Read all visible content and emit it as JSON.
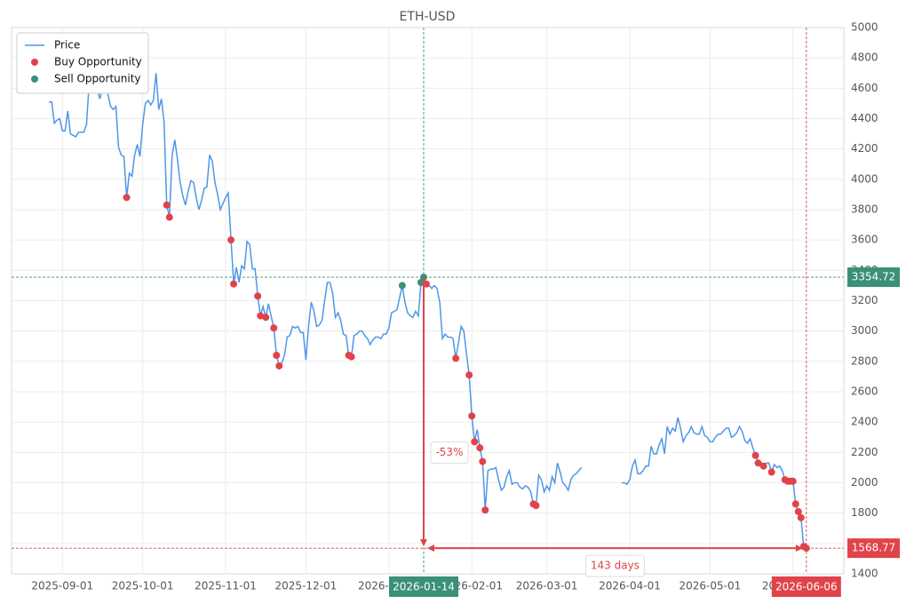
{
  "chart_data": {
    "type": "line",
    "title": "ETH-USD",
    "x": [
      "2025-08-27",
      "2025-08-28",
      "2025-08-29",
      "2025-08-30",
      "2025-08-31",
      "2025-09-01",
      "2025-09-02",
      "2025-09-03",
      "2025-09-04",
      "2025-09-05",
      "2025-09-06",
      "2025-09-07",
      "2025-09-08",
      "2025-09-09",
      "2025-09-10",
      "2025-09-11",
      "2025-09-12",
      "2025-09-13",
      "2025-09-14",
      "2025-09-15",
      "2025-09-16",
      "2025-09-17",
      "2025-09-18",
      "2025-09-19",
      "2025-09-20",
      "2025-09-21",
      "2025-09-22",
      "2025-09-23",
      "2025-09-24",
      "2025-09-25",
      "2025-09-26",
      "2025-09-27",
      "2025-09-28",
      "2025-09-29",
      "2025-09-30",
      "2025-10-01",
      "2025-10-02",
      "2025-10-03",
      "2025-10-04",
      "2025-10-05",
      "2025-10-06",
      "2025-10-07",
      "2025-10-08",
      "2025-10-09",
      "2025-10-10",
      "2025-10-11",
      "2025-10-12",
      "2025-10-13",
      "2025-10-14",
      "2025-10-15",
      "2025-10-16",
      "2025-10-17",
      "2025-10-18",
      "2025-10-19",
      "2025-10-20",
      "2025-10-21",
      "2025-10-22",
      "2025-10-23",
      "2025-10-24",
      "2025-10-25",
      "2025-10-26",
      "2025-10-27",
      "2025-10-28",
      "2025-10-29",
      "2025-10-30",
      "2025-10-31",
      "2025-11-01",
      "2025-11-02",
      "2025-11-03",
      "2025-11-04",
      "2025-11-05",
      "2025-11-06",
      "2025-11-07",
      "2025-11-08",
      "2025-11-09",
      "2025-11-10",
      "2025-11-11",
      "2025-11-12",
      "2025-11-13",
      "2025-11-14",
      "2025-11-15",
      "2025-11-16",
      "2025-11-17",
      "2025-11-18",
      "2025-11-19",
      "2025-11-20",
      "2025-11-21",
      "2025-11-22",
      "2025-11-23",
      "2025-11-24",
      "2025-11-25",
      "2025-11-26",
      "2025-11-27",
      "2025-11-28",
      "2025-11-29",
      "2025-11-30",
      "2025-12-01",
      "2025-12-02",
      "2025-12-03",
      "2025-12-04",
      "2025-12-05",
      "2025-12-06",
      "2025-12-07",
      "2025-12-08",
      "2025-12-09",
      "2025-12-10",
      "2025-12-11",
      "2025-12-12",
      "2025-12-13",
      "2025-12-14",
      "2025-12-15",
      "2025-12-16",
      "2025-12-17",
      "2025-12-18",
      "2025-12-19",
      "2025-12-20",
      "2025-12-21",
      "2025-12-22",
      "2025-12-23",
      "2025-12-24",
      "2025-12-25",
      "2025-12-26",
      "2025-12-27",
      "2025-12-28",
      "2025-12-29",
      "2025-12-30",
      "2025-12-31",
      "2026-01-01",
      "2026-01-02",
      "2026-01-03",
      "2026-01-04",
      "2026-01-05",
      "2026-01-06",
      "2026-01-07",
      "2026-01-08",
      "2026-01-09",
      "2026-01-10",
      "2026-01-11",
      "2026-01-12",
      "2026-01-13",
      "2026-01-14",
      "2026-01-15",
      "2026-01-16",
      "2026-01-17",
      "2026-01-18",
      "2026-01-19",
      "2026-01-20",
      "2026-01-21",
      "2026-01-22",
      "2026-01-23",
      "2026-01-24",
      "2026-01-25",
      "2026-01-26",
      "2026-01-27",
      "2026-01-28",
      "2026-01-29",
      "2026-01-30",
      "2026-01-31",
      "2026-02-01",
      "2026-02-02",
      "2026-02-03",
      "2026-02-04",
      "2026-02-05",
      "2026-02-06",
      "2026-02-07",
      "2026-02-08",
      "2026-02-09",
      "2026-02-10",
      "2026-02-11",
      "2026-02-12",
      "2026-02-13",
      "2026-02-14",
      "2026-02-15",
      "2026-02-16",
      "2026-02-17",
      "2026-02-18",
      "2026-02-19",
      "2026-02-20",
      "2026-02-21",
      "2026-02-22",
      "2026-02-23",
      "2026-02-24",
      "2026-02-25",
      "2026-02-26",
      "2026-02-27",
      "2026-02-28",
      "2026-03-01",
      "2026-03-02",
      "2026-03-03",
      "2026-03-04",
      "2026-03-05",
      "2026-03-06",
      "2026-03-07",
      "2026-03-08",
      "2026-03-09",
      "2026-03-10",
      "2026-03-11",
      "2026-03-12",
      "2026-03-13",
      "2026-03-14",
      "2026-03-21",
      "2026-03-29",
      "2026-03-30",
      "2026-03-31",
      "2026-04-01",
      "2026-04-02",
      "2026-04-03",
      "2026-04-04",
      "2026-04-05",
      "2026-04-06",
      "2026-04-07",
      "2026-04-08",
      "2026-04-09",
      "2026-04-10",
      "2026-04-11",
      "2026-04-12",
      "2026-04-13",
      "2026-04-14",
      "2026-04-15",
      "2026-04-16",
      "2026-04-17",
      "2026-04-18",
      "2026-04-19",
      "2026-04-20",
      "2026-04-21",
      "2026-04-22",
      "2026-04-23",
      "2026-04-24",
      "2026-04-25",
      "2026-04-26",
      "2026-04-27",
      "2026-04-28",
      "2026-04-29",
      "2026-04-30",
      "2026-05-01",
      "2026-05-02",
      "2026-05-03",
      "2026-05-04",
      "2026-05-05",
      "2026-05-06",
      "2026-05-07",
      "2026-05-08",
      "2026-05-09",
      "2026-05-10",
      "2026-05-11",
      "2026-05-12",
      "2026-05-13",
      "2026-05-14",
      "2026-05-15",
      "2026-05-16",
      "2026-05-17",
      "2026-05-18",
      "2026-05-19",
      "2026-05-20",
      "2026-05-21",
      "2026-05-22",
      "2026-05-23",
      "2026-05-24",
      "2026-05-25",
      "2026-05-26",
      "2026-05-27",
      "2026-05-28",
      "2026-05-29",
      "2026-05-30",
      "2026-05-31",
      "2026-06-01",
      "2026-06-02",
      "2026-06-03",
      "2026-06-04",
      "2026-06-05",
      "2026-06-06"
    ],
    "series": [
      {
        "name": "Price",
        "type": "line",
        "color": "#4e97e8",
        "values": [
          4510,
          4510,
          4370,
          4390,
          4400,
          4320,
          4320,
          4450,
          4300,
          4290,
          4280,
          4310,
          4310,
          4310,
          4360,
          4640,
          4760,
          4680,
          4600,
          4530,
          4600,
          4690,
          4560,
          4480,
          4460,
          4480,
          4210,
          4160,
          4150,
          3880,
          4040,
          4020,
          4160,
          4230,
          4150,
          4360,
          4500,
          4520,
          4490,
          4520,
          4700,
          4460,
          4530,
          4380,
          3830,
          3750,
          4160,
          4260,
          4130,
          3980,
          3890,
          3830,
          3920,
          3990,
          3980,
          3880,
          3800,
          3860,
          3940,
          3950,
          4160,
          4120,
          3980,
          3900,
          3800,
          3840,
          3880,
          3910,
          3600,
          3310,
          3420,
          3320,
          3430,
          3410,
          3590,
          3570,
          3410,
          3410,
          3230,
          3100,
          3160,
          3090,
          3180,
          3100,
          3020,
          2840,
          2770,
          2790,
          2840,
          2960,
          2970,
          3030,
          3020,
          3030,
          2990,
          2990,
          2810,
          3030,
          3190,
          3130,
          3030,
          3040,
          3070,
          3200,
          3320,
          3320,
          3250,
          3090,
          3120,
          3070,
          2980,
          2970,
          2840,
          2830,
          2970,
          2980,
          3000,
          3000,
          2970,
          2950,
          2910,
          2940,
          2960,
          2960,
          2950,
          2980,
          2980,
          3020,
          3120,
          3130,
          3140,
          3220,
          3300,
          3190,
          3120,
          3100,
          3090,
          3130,
          3100,
          3320,
          3354.72,
          3310,
          3300,
          3280,
          3300,
          3280,
          3190,
          2950,
          2980,
          2960,
          2960,
          2950,
          2820,
          2920,
          3030,
          3000,
          2850,
          2710,
          2440,
          2270,
          2350,
          2230,
          2140,
          1820,
          2080,
          2090,
          2090,
          2100,
          2020,
          1950,
          1970,
          2040,
          2080,
          1990,
          2000,
          2000,
          1970,
          1960,
          1980,
          1970,
          1940,
          1860,
          1850,
          2050,
          2020,
          1940,
          1980,
          1950,
          2040,
          2000,
          2130,
          2070,
          2000,
          1980,
          1950,
          2020,
          2050,
          2060,
          2080,
          2100,
          null,
          2000,
          2000,
          1990,
          2020,
          2110,
          2150,
          2060,
          2060,
          2080,
          2110,
          2110,
          2240,
          2190,
          2190,
          2250,
          2290,
          2190,
          2370,
          2320,
          2360,
          2340,
          2430,
          2360,
          2270,
          2310,
          2330,
          2370,
          2330,
          2320,
          2320,
          2370,
          2310,
          2300,
          2270,
          2270,
          2300,
          2320,
          2320,
          2340,
          2360,
          2360,
          2300,
          2310,
          2330,
          2370,
          2340,
          2280,
          2260,
          2290,
          2230,
          2180,
          2130,
          2120,
          2110,
          2130,
          2130,
          2070,
          2120,
          2100,
          2110,
          2080,
          2020,
          2010,
          2010,
          2010,
          1860,
          1810,
          1770,
          1580,
          1568.77
        ]
      },
      {
        "name": "Buy Opportunity",
        "type": "scatter",
        "color": "#e0434a",
        "x": [
          "2025-09-25",
          "2025-10-10",
          "2025-10-11",
          "2025-11-03",
          "2025-11-04",
          "2025-11-13",
          "2025-11-14",
          "2025-11-16",
          "2025-11-19",
          "2025-11-20",
          "2025-11-21",
          "2025-12-17",
          "2025-12-18",
          "2026-01-15",
          "2026-01-26",
          "2026-01-31",
          "2026-02-01",
          "2026-02-02",
          "2026-02-04",
          "2026-02-05",
          "2026-02-06",
          "2026-02-24",
          "2026-02-25",
          "2026-05-18",
          "2026-05-19",
          "2026-05-21",
          "2026-05-24",
          "2026-05-29",
          "2026-05-30",
          "2026-05-31",
          "2026-06-01",
          "2026-06-02",
          "2026-06-03",
          "2026-06-04",
          "2026-06-05",
          "2026-06-06"
        ],
        "values": [
          3880,
          3830,
          3750,
          3600,
          3310,
          3230,
          3100,
          3090,
          3020,
          2840,
          2770,
          2840,
          2830,
          3310,
          2820,
          2710,
          2440,
          2270,
          2230,
          2140,
          1820,
          1860,
          1850,
          2180,
          2130,
          2110,
          2070,
          2020,
          2010,
          2010,
          2010,
          1860,
          1810,
          1770,
          1580,
          1568.77
        ]
      },
      {
        "name": "Sell Opportunity",
        "type": "scatter",
        "color": "#3a9078",
        "x": [
          "2026-01-06",
          "2026-01-13",
          "2026-01-14"
        ],
        "values": [
          3300,
          3320,
          3354.72
        ]
      }
    ],
    "xlim": [
      "2025-08-13",
      "2026-06-20"
    ],
    "xticks": [
      "2025-09-01",
      "2025-10-01",
      "2025-11-01",
      "2025-12-01",
      "2026-01-01",
      "2026-02-01",
      "2026-03-01",
      "2026-04-01",
      "2026-05-01",
      "2026-06-01"
    ],
    "ylim": [
      1400,
      5000
    ],
    "yticks": [
      1400,
      1600,
      1800,
      2000,
      2200,
      2400,
      2600,
      2800,
      3000,
      3200,
      3400,
      3600,
      3800,
      4000,
      4200,
      4400,
      4600,
      4800,
      5000
    ],
    "grid": true,
    "legend": "upper left",
    "hlines": [
      {
        "y": 3354.72,
        "color": "#3a9078"
      },
      {
        "y": 1568.77,
        "color": "#e0434a"
      }
    ],
    "vlines": [
      {
        "x": "2026-01-14",
        "color": "#3a9078"
      },
      {
        "x": "2026-06-06",
        "color": "#e0434a"
      }
    ],
    "change_label": "-53%",
    "duration_label": "143 days"
  }
}
